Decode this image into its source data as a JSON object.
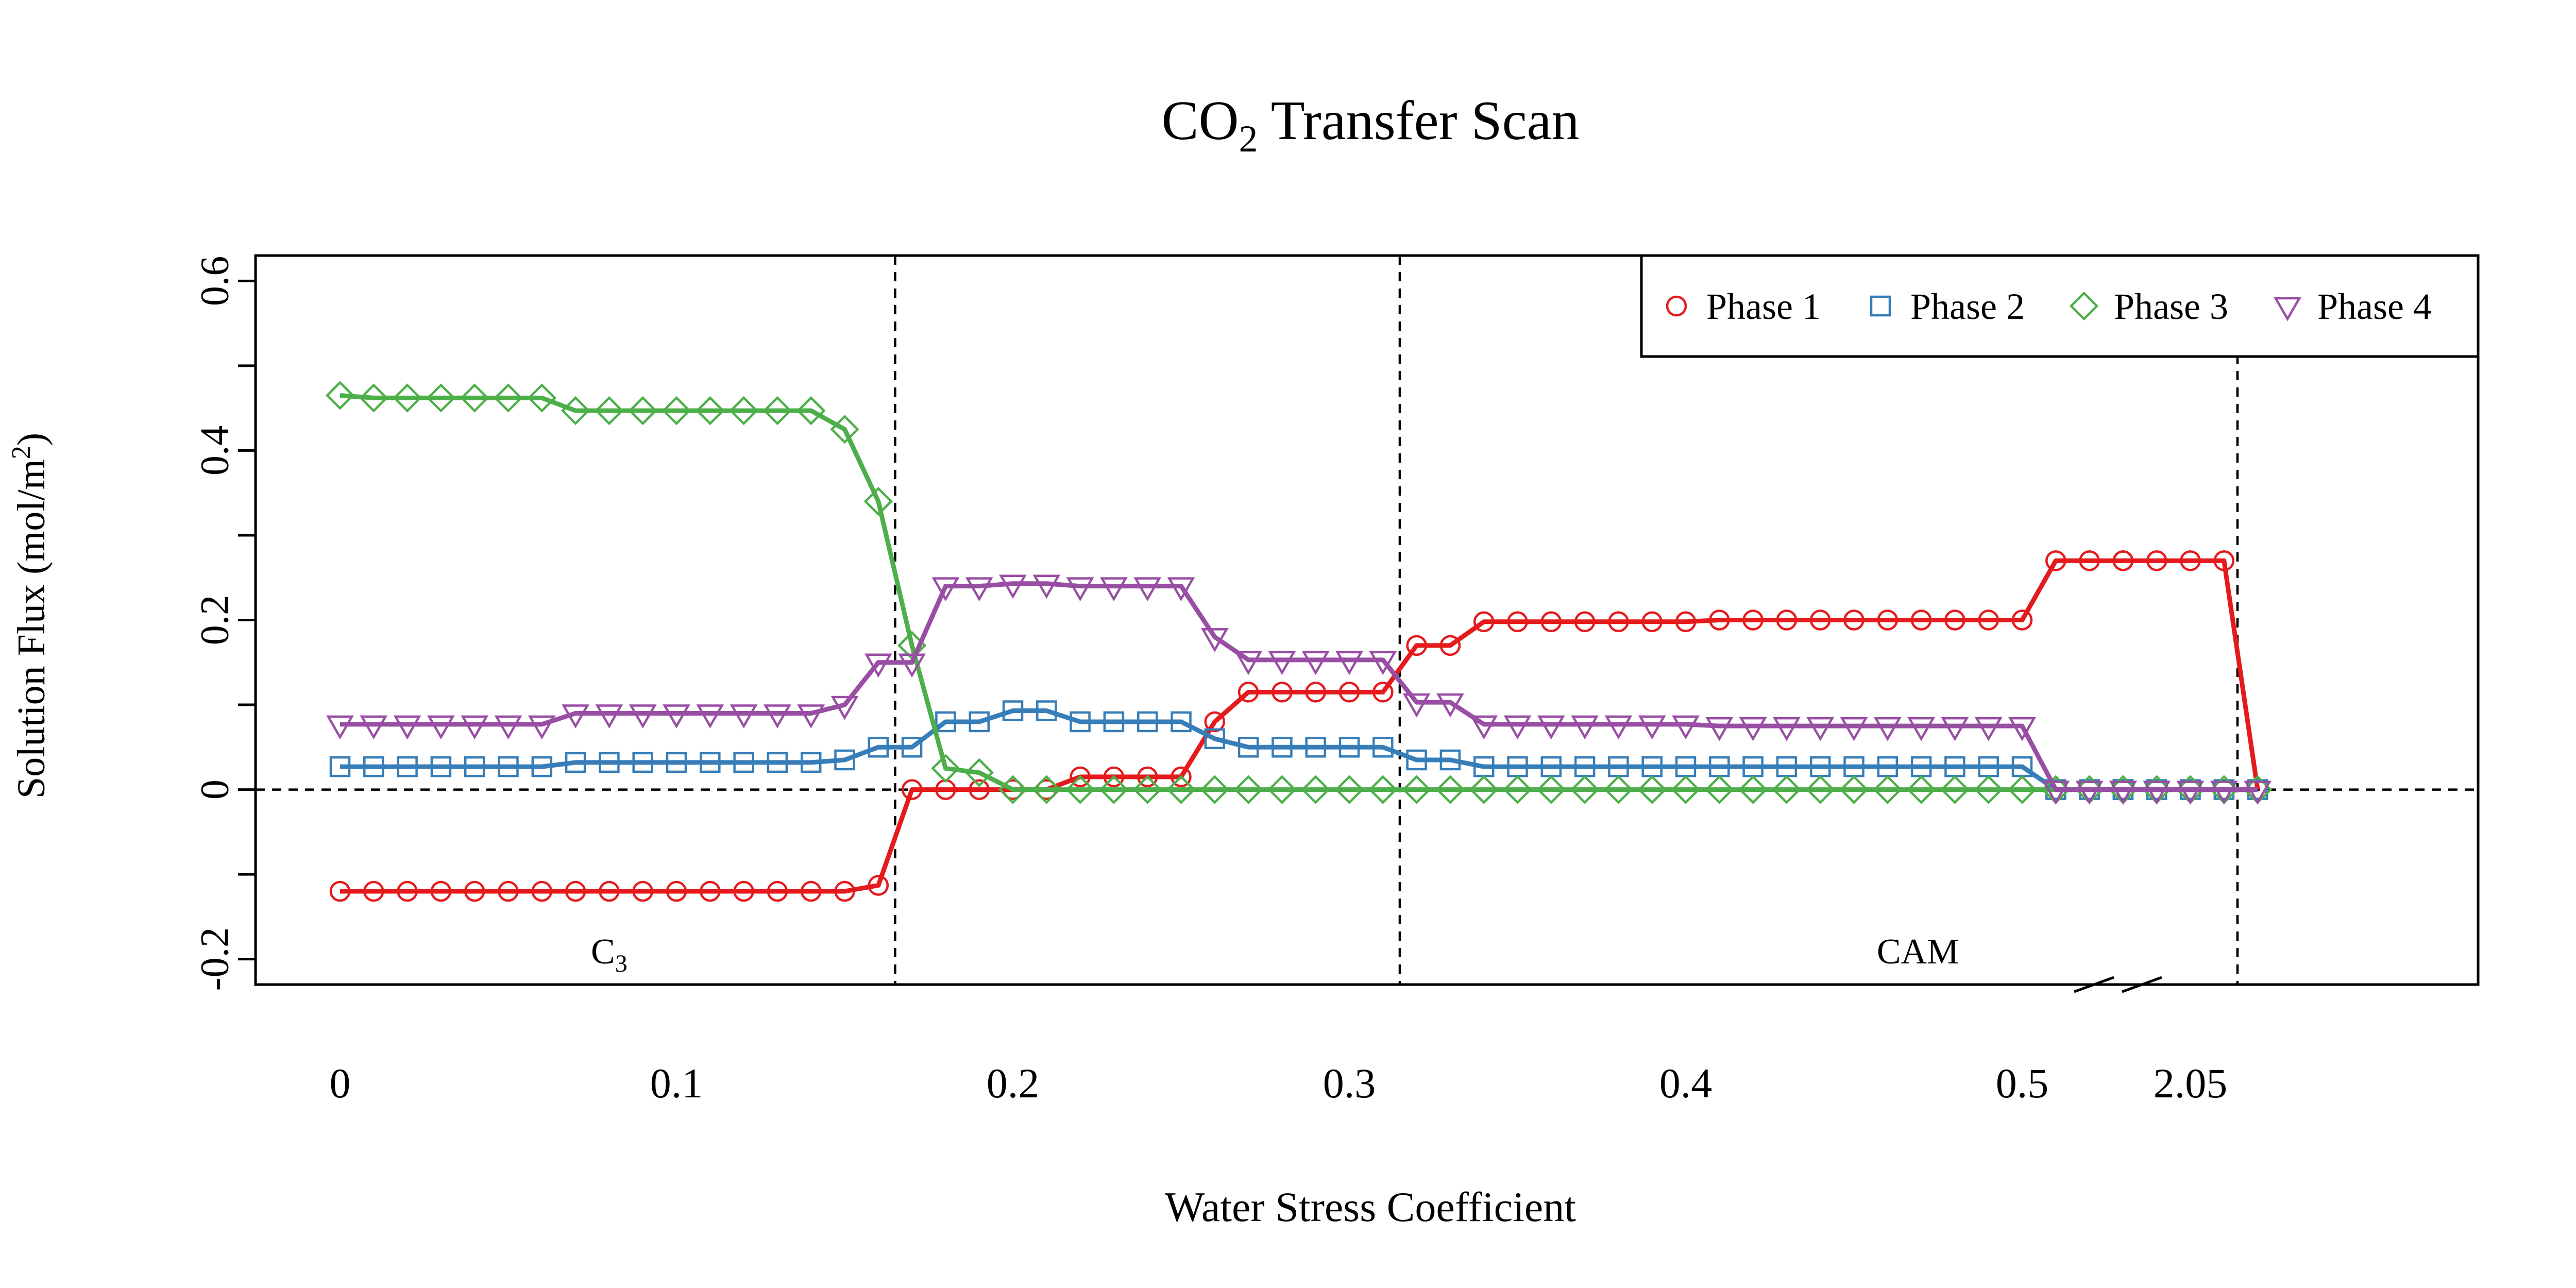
{
  "chart_data": {
    "type": "line",
    "title": "CO",
    "title_sub": "2",
    "title_rest": " Transfer Scan",
    "xlabel": "Water Stress Coefficient",
    "ylabel": "Solution Flux (mol/m",
    "ylabel_sup": "2",
    "ylabel_end": ")",
    "ylim": [
      -0.23,
      0.63
    ],
    "yticks": [
      -0.2,
      0,
      0.2,
      0.4,
      0.6
    ],
    "ytick_labels": [
      "-0.2",
      "0",
      "0.2",
      "0.4",
      "0.6"
    ],
    "yminor_ticks": [
      -0.1,
      0.1,
      0.3,
      0.5
    ],
    "xticks": [
      0,
      0.1,
      0.2,
      0.3,
      0.4,
      0.5,
      2.05
    ],
    "xtick_labels": [
      "0",
      "0.1",
      "0.2",
      "0.3",
      "0.4",
      "0.5",
      "2.05"
    ],
    "axis_break": {
      "from": 0.53,
      "to": 2.03
    },
    "grid": false,
    "legend_position": "top-right",
    "hlines": [
      0
    ],
    "vlines": [
      0.165,
      0.315,
      2.064
    ],
    "regions": [
      {
        "label": "C",
        "sub": "3",
        "x": 0.08
      },
      {
        "label": "CAM",
        "x": 0.469
      }
    ],
    "x": [
      0,
      0.01,
      0.02,
      0.03,
      0.04,
      0.05,
      0.06,
      0.07,
      0.08,
      0.09,
      0.1,
      0.11,
      0.12,
      0.13,
      0.14,
      0.15,
      0.16,
      0.17,
      0.18,
      0.19,
      0.2,
      0.21,
      0.22,
      0.23,
      0.24,
      0.25,
      0.26,
      0.27,
      0.28,
      0.29,
      0.3,
      0.31,
      0.32,
      0.33,
      0.34,
      0.35,
      0.36,
      0.37,
      0.38,
      0.39,
      0.4,
      0.41,
      0.42,
      0.43,
      0.44,
      0.45,
      0.46,
      0.47,
      0.48,
      0.49,
      0.5,
      0.51,
      0.52,
      0.53,
      2.03,
      2.04,
      2.05,
      2.06,
      2.07
    ],
    "series": [
      {
        "name": "Phase 1",
        "color": "#E41A1C",
        "marker": "circle",
        "values": [
          -0.12,
          -0.12,
          -0.12,
          -0.12,
          -0.12,
          -0.12,
          -0.12,
          -0.12,
          -0.12,
          -0.12,
          -0.12,
          -0.12,
          -0.12,
          -0.12,
          -0.12,
          -0.12,
          -0.113,
          0.0,
          0.0,
          0.0,
          0.0,
          0.0,
          0.015,
          0.015,
          0.015,
          0.015,
          0.08,
          0.115,
          0.115,
          0.115,
          0.115,
          0.115,
          0.17,
          0.17,
          0.198,
          0.198,
          0.198,
          0.198,
          0.198,
          0.198,
          0.198,
          0.2,
          0.2,
          0.2,
          0.2,
          0.2,
          0.2,
          0.2,
          0.2,
          0.2,
          0.2,
          0.27,
          0.27,
          0.27,
          0.27,
          0.27,
          0.27,
          0.27,
          0.0
        ]
      },
      {
        "name": "Phase 2",
        "color": "#377EB8",
        "marker": "square",
        "values": [
          0.027,
          0.027,
          0.027,
          0.027,
          0.027,
          0.027,
          0.027,
          0.032,
          0.032,
          0.032,
          0.032,
          0.032,
          0.032,
          0.032,
          0.032,
          0.035,
          0.05,
          0.05,
          0.08,
          0.08,
          0.093,
          0.093,
          0.08,
          0.08,
          0.08,
          0.08,
          0.06,
          0.05,
          0.05,
          0.05,
          0.05,
          0.05,
          0.035,
          0.035,
          0.027,
          0.027,
          0.027,
          0.027,
          0.027,
          0.027,
          0.027,
          0.027,
          0.027,
          0.027,
          0.027,
          0.027,
          0.027,
          0.027,
          0.027,
          0.027,
          0.027,
          0.0,
          0.0,
          0.0,
          0.0,
          0.0,
          0.0,
          0.0,
          0.0
        ]
      },
      {
        "name": "Phase 3",
        "color": "#4DAF4A",
        "marker": "diamond",
        "values": [
          0.465,
          0.462,
          0.462,
          0.462,
          0.462,
          0.462,
          0.462,
          0.447,
          0.447,
          0.447,
          0.447,
          0.447,
          0.447,
          0.447,
          0.447,
          0.425,
          0.34,
          0.17,
          0.025,
          0.02,
          0.0,
          0.0,
          0.0,
          0.0,
          0.0,
          0.0,
          0.0,
          0.0,
          0.0,
          0.0,
          0.0,
          0.0,
          0.0,
          0.0,
          0.0,
          0.0,
          0.0,
          0.0,
          0.0,
          0.0,
          0.0,
          0.0,
          0.0,
          0.0,
          0.0,
          0.0,
          0.0,
          0.0,
          0.0,
          0.0,
          0.0,
          0.0,
          0.0,
          0.0,
          0.0,
          0.0,
          0.0,
          0.0,
          0.0
        ]
      },
      {
        "name": "Phase 4",
        "color": "#984EA3",
        "marker": "triangle-down",
        "values": [
          0.077,
          0.077,
          0.077,
          0.077,
          0.077,
          0.077,
          0.077,
          0.09,
          0.09,
          0.09,
          0.09,
          0.09,
          0.09,
          0.09,
          0.09,
          0.1,
          0.15,
          0.15,
          0.24,
          0.24,
          0.243,
          0.243,
          0.24,
          0.24,
          0.24,
          0.24,
          0.18,
          0.153,
          0.153,
          0.153,
          0.153,
          0.153,
          0.103,
          0.103,
          0.077,
          0.077,
          0.077,
          0.077,
          0.077,
          0.077,
          0.077,
          0.075,
          0.075,
          0.075,
          0.075,
          0.075,
          0.075,
          0.075,
          0.075,
          0.075,
          0.075,
          0.0,
          0.0,
          0.0,
          0.0,
          0.0,
          0.0,
          0.0,
          0.0
        ]
      }
    ]
  }
}
